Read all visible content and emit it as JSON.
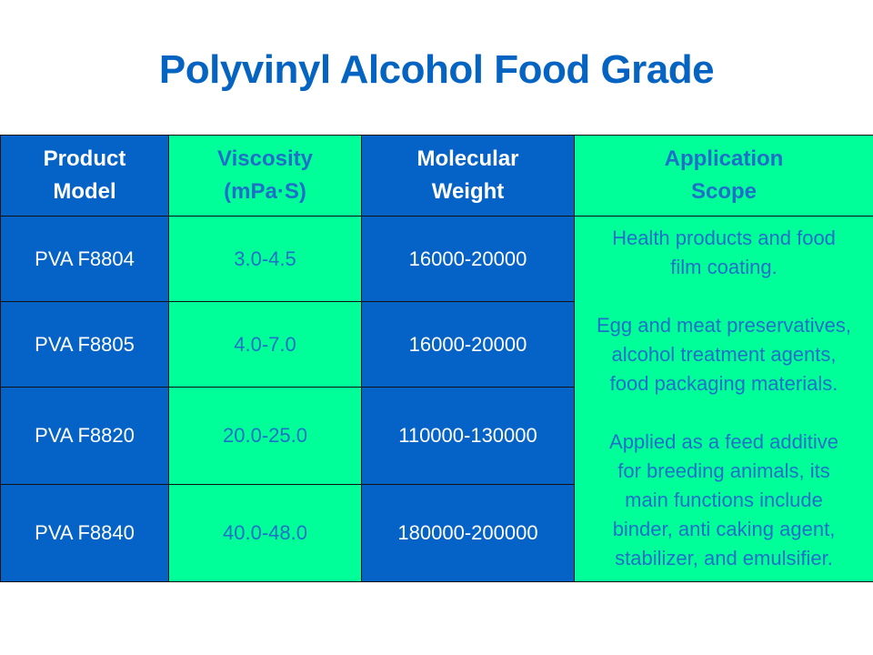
{
  "title": "Polyvinyl Alcohol Food Grade",
  "table": {
    "headers": [
      [
        "Product",
        "Model"
      ],
      [
        "Viscosity",
        "(mPa·S)"
      ],
      [
        "Molecular",
        "Weight"
      ],
      [
        "Application",
        "Scope"
      ]
    ],
    "rows": [
      {
        "model": "PVA F8804",
        "viscosity": "3.0-4.5",
        "weight": "16000-20000"
      },
      {
        "model": "PVA F8805",
        "viscosity": "4.0-7.0",
        "weight": "16000-20000"
      },
      {
        "model": "PVA F8820",
        "viscosity": "20.0-25.0",
        "weight": "110000-130000"
      },
      {
        "model": "PVA F8840",
        "viscosity": "40.0-48.0",
        "weight": "180000-200000"
      }
    ],
    "application_scope": [
      [
        "Health products and food",
        "film coating."
      ],
      [
        "Egg and meat preservatives,",
        "alcohol treatment agents,",
        "food packaging materials."
      ],
      [
        "Applied as a feed additive",
        "for breeding animals, its",
        "main functions include",
        "binder, anti caking agent,",
        "stabilizer, and emulsifier."
      ]
    ]
  },
  "colors": {
    "blue": "#0563C8",
    "green": "#00FF99",
    "title": "#0563C1",
    "green_text": "#1F6FC8"
  }
}
